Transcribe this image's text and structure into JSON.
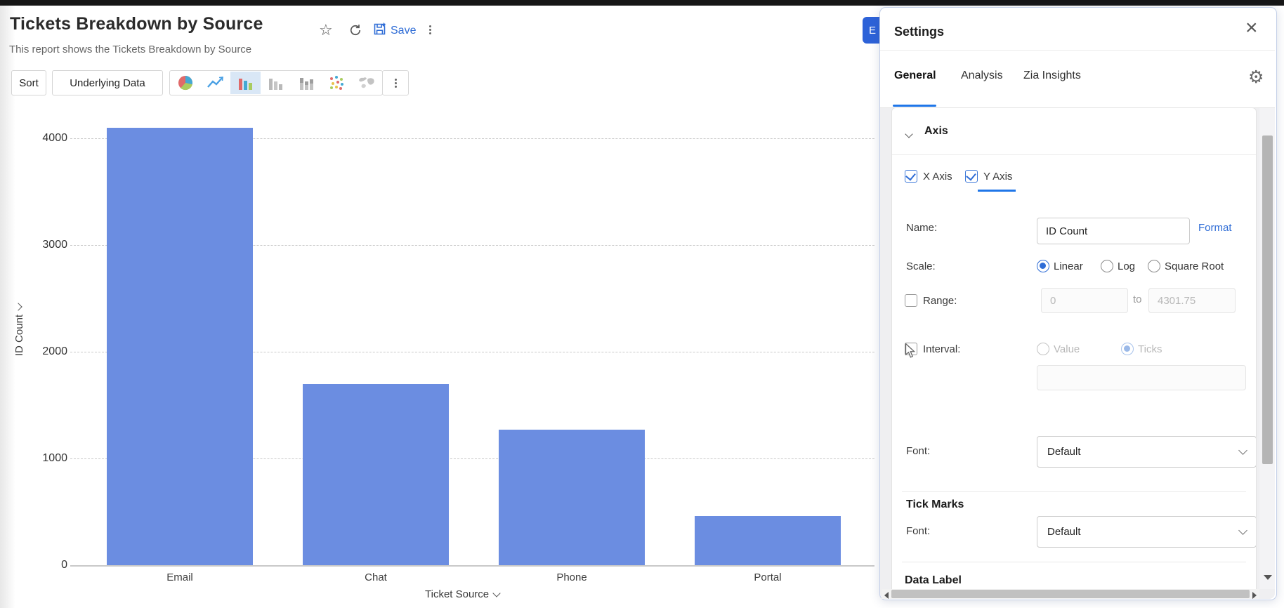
{
  "page": {
    "title": "Tickets Breakdown by Source",
    "subtitle": "This report shows the Tickets Breakdown by Source",
    "save_label": "Save",
    "export_button_visible_text": "E"
  },
  "toolbar": {
    "sort_label": "Sort",
    "underlying_data_label": "Underlying Data",
    "chart_type_icons": [
      "pie-chart-icon",
      "line-chart-icon",
      "bar-chart-icon",
      "bar-chart-gray-icon",
      "stacked-bar-chart-icon",
      "scatter-chart-icon",
      "map-chart-icon"
    ],
    "selected_chart_type": "bar"
  },
  "chart_data": {
    "type": "bar",
    "categories": [
      "Email",
      "Chat",
      "Phone",
      "Portal"
    ],
    "values": [
      4097,
      1700,
      1270,
      460
    ],
    "xlabel": "Ticket Source",
    "ylabel": "ID Count",
    "yticks": [
      0,
      1000,
      2000,
      3000,
      4000
    ],
    "ylim": [
      0,
      4301.75
    ],
    "bar_color": "#6b8de1",
    "grid": true,
    "legend": "none"
  },
  "settings_panel": {
    "title": "Settings",
    "tabs": [
      {
        "label": "General",
        "active": true
      },
      {
        "label": "Analysis",
        "active": false
      },
      {
        "label": "Zia Insights",
        "active": false
      }
    ],
    "axis_section": {
      "title": "Axis",
      "x_axis_label": "X Axis",
      "x_axis_checked": true,
      "y_axis_label": "Y Axis",
      "y_axis_checked": true,
      "name_label": "Name:",
      "name_value": "ID Count",
      "format_link": "Format",
      "scale_label": "Scale:",
      "scale_options": [
        "Linear",
        "Log",
        "Square Root"
      ],
      "scale_selected": "Linear",
      "range_label": "Range:",
      "range_checked": false,
      "range_from": "0",
      "range_to_word": "to",
      "range_to": "4301.75",
      "interval_label": "Interval:",
      "interval_checked": false,
      "interval_options": [
        "Value",
        "Ticks"
      ],
      "interval_selected": "Ticks",
      "font_label": "Font:",
      "font_value": "Default"
    },
    "tick_marks_section": {
      "title": "Tick Marks",
      "font_label": "Font:",
      "font_value": "Default"
    },
    "data_label_section": {
      "title": "Data Label"
    }
  }
}
